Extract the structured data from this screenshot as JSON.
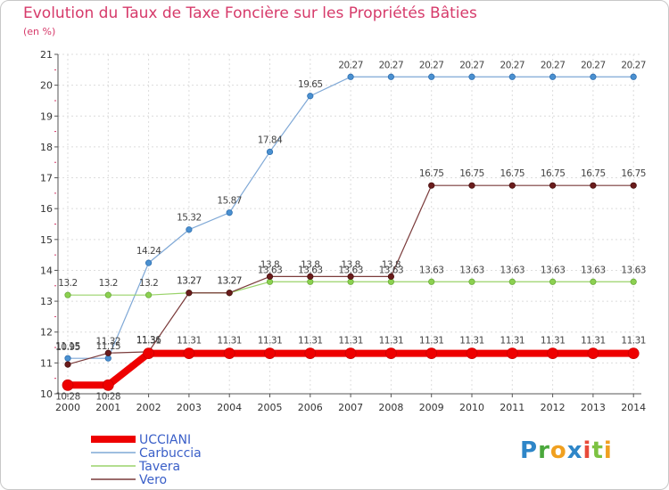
{
  "chart_data": {
    "type": "line",
    "title": "Evolution du Taux de Taxe Foncière sur les Propriétés Bâties",
    "ylabel": "(en %)",
    "xlabel": "",
    "ylim": [
      10,
      21
    ],
    "yticks": [
      "10",
      "11",
      "12",
      "13",
      "14",
      "15",
      "16",
      "17",
      "18",
      "19",
      "20",
      "21"
    ],
    "categories": [
      "2000",
      "2001",
      "2002",
      "2003",
      "2004",
      "2005",
      "2006",
      "2007",
      "2008",
      "2009",
      "2010",
      "2011",
      "2012",
      "2013",
      "2014"
    ],
    "legend_position": "bottom-left",
    "series": [
      {
        "name": "UCCIANI",
        "color": "#ee0000",
        "values": [
          10.28,
          10.28,
          11.31,
          11.31,
          11.31,
          11.31,
          11.31,
          11.31,
          11.31,
          11.31,
          11.31,
          11.31,
          11.31,
          11.31,
          11.31
        ],
        "labels": [
          "10.28",
          "10.28",
          "11.31",
          "11.31",
          "11.31",
          "11.31",
          "11.31",
          "11.31",
          "11.31",
          "11.31",
          "11.31",
          "11.31",
          "11.31",
          "11.31",
          "11.31"
        ]
      },
      {
        "name": "Carbuccia",
        "color": "#7fa8d6",
        "values": [
          11.15,
          11.15,
          14.24,
          15.32,
          15.87,
          17.84,
          19.65,
          20.27,
          20.27,
          20.27,
          20.27,
          20.27,
          20.27,
          20.27,
          20.27
        ],
        "labels": [
          "11.15",
          "11.15",
          "14.24",
          "15.32",
          "15.87",
          "17.84",
          "19.65",
          "20.27",
          "20.27",
          "20.27",
          "20.27",
          "20.27",
          "20.27",
          "20.27",
          "20.27"
        ]
      },
      {
        "name": "Tavera",
        "color": "#9ad36a",
        "values": [
          13.2,
          13.2,
          13.2,
          13.27,
          13.27,
          13.63,
          13.63,
          13.63,
          13.63,
          13.63,
          13.63,
          13.63,
          13.63,
          13.63,
          13.63
        ],
        "labels": [
          "13.2",
          "13.2",
          "13.2",
          "13.27",
          "13.27",
          "13.63",
          "13.63",
          "13.63",
          "13.63",
          "13.63",
          "13.63",
          "13.63",
          "13.63",
          "13.63",
          "13.63"
        ]
      },
      {
        "name": "Vero",
        "color": "#6e2a2a",
        "values": [
          10.95,
          11.32,
          11.36,
          13.27,
          13.27,
          13.8,
          13.8,
          13.8,
          13.8,
          16.75,
          16.75,
          16.75,
          16.75,
          16.75,
          16.75
        ],
        "labels": [
          "10.95",
          "11.32",
          "11.36",
          "13.27",
          "13.27",
          "13.8",
          "13.8",
          "13.8",
          "13.8",
          "16.75",
          "16.75",
          "16.75",
          "16.75",
          "16.75",
          "16.75"
        ]
      }
    ]
  },
  "logo": {
    "text": "Proxiti"
  }
}
